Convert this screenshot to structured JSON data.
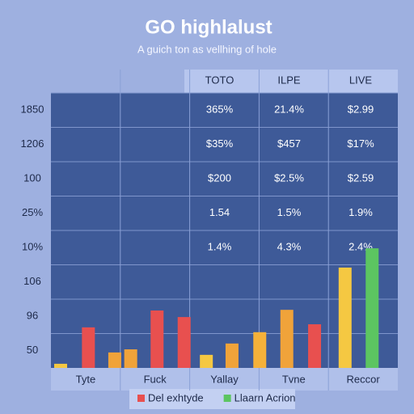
{
  "chart_data": {
    "type": "bar",
    "title": "GO highlalust",
    "subtitle": "A guich ton as vellhing of hole",
    "categories": [
      "Tyte",
      "Fuck",
      "Yallay",
      "Tvne",
      "Reccor"
    ],
    "xlim": [
      0,
      5
    ],
    "x": [
      0.14,
      0.54,
      0.92,
      1.15,
      1.53,
      1.92,
      2.24,
      2.61,
      3.01,
      3.4,
      3.8,
      4.24,
      4.63
    ],
    "values": [
      0.12,
      1.18,
      0.45,
      0.54,
      1.67,
      1.48,
      0.38,
      0.71,
      1.04,
      1.69,
      1.27,
      2.92,
      3.48
    ],
    "colors": [
      "#f5c842",
      "#e8504f",
      "#f0a33a",
      "#f0a33a",
      "#e8504f",
      "#e8504f",
      "#f5c842",
      "#f0a33a",
      "#f5b13a",
      "#f0a33a",
      "#e8504f",
      "#f5c842",
      "#5cc561"
    ],
    "ylim": [
      0,
      8
    ],
    "yticks": [
      {
        "value": 8,
        "label": "1850"
      },
      {
        "value": 7,
        "label": "1206"
      },
      {
        "value": 6,
        "label": "100"
      },
      {
        "value": 5,
        "label": "25%"
      },
      {
        "value": 4,
        "label": "10%"
      },
      {
        "value": 3,
        "label": "106"
      },
      {
        "value": 2,
        "label": "96"
      },
      {
        "value": 1,
        "label": "50"
      }
    ],
    "grid": true,
    "legend": [
      {
        "name": "Del exhtyde",
        "color": "#e8504f"
      },
      {
        "name": "Llaarn Acrion",
        "color": "#5cc561"
      }
    ],
    "table": {
      "columns": [
        "TOTO",
        "ILPE",
        "LIVE"
      ],
      "rows": [
        [
          "365%",
          "21.4%",
          "$2.99"
        ],
        [
          "$35%",
          "$457",
          "$17%"
        ],
        [
          "$200",
          "$2.5%",
          "$2.59"
        ],
        [
          "1.54",
          "1.5%",
          "1.9%"
        ],
        [
          "1.4%",
          "4.3%",
          "2.4%"
        ]
      ]
    }
  }
}
